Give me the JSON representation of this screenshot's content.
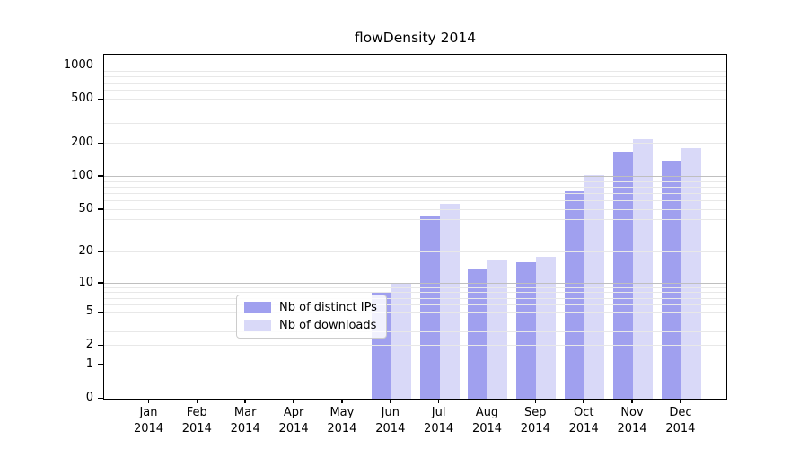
{
  "figure": {
    "background": "#ffffff"
  },
  "chart_data": {
    "type": "bar",
    "title": "flowDensity 2014",
    "categories": [
      "Jan",
      "Feb",
      "Mar",
      "Apr",
      "May",
      "Jun",
      "Jul",
      "Aug",
      "Sep",
      "Oct",
      "Nov",
      "Dec"
    ],
    "year": "2014",
    "series": [
      {
        "name": "Nb of distinct IPs",
        "color": "#a0a0ef",
        "values": [
          0,
          0,
          0,
          0,
          0,
          8,
          43,
          14,
          16,
          74,
          170,
          140
        ]
      },
      {
        "name": "Nb of downloads",
        "color": "#d9d9f8",
        "values": [
          0,
          0,
          0,
          0,
          0,
          10,
          57,
          17,
          18,
          104,
          221,
          182
        ]
      }
    ],
    "yscale": "log1p",
    "ylim": [
      0,
      1300
    ],
    "yticks": [
      0,
      1,
      2,
      5,
      10,
      20,
      50,
      100,
      200,
      500,
      1000
    ],
    "minor_gridlines": [
      1,
      2,
      3,
      4,
      5,
      6,
      7,
      8,
      9,
      20,
      30,
      40,
      50,
      60,
      70,
      80,
      90,
      200,
      300,
      400,
      500,
      600,
      700,
      800,
      900
    ],
    "major_gridlines": [
      10,
      100,
      1000
    ],
    "grid_minor_color": "#e8e8e8",
    "grid_major_color": "#bfbfbf",
    "legend_position": "lower-center",
    "legend": [
      "Nb of distinct IPs",
      "Nb of downloads"
    ]
  }
}
